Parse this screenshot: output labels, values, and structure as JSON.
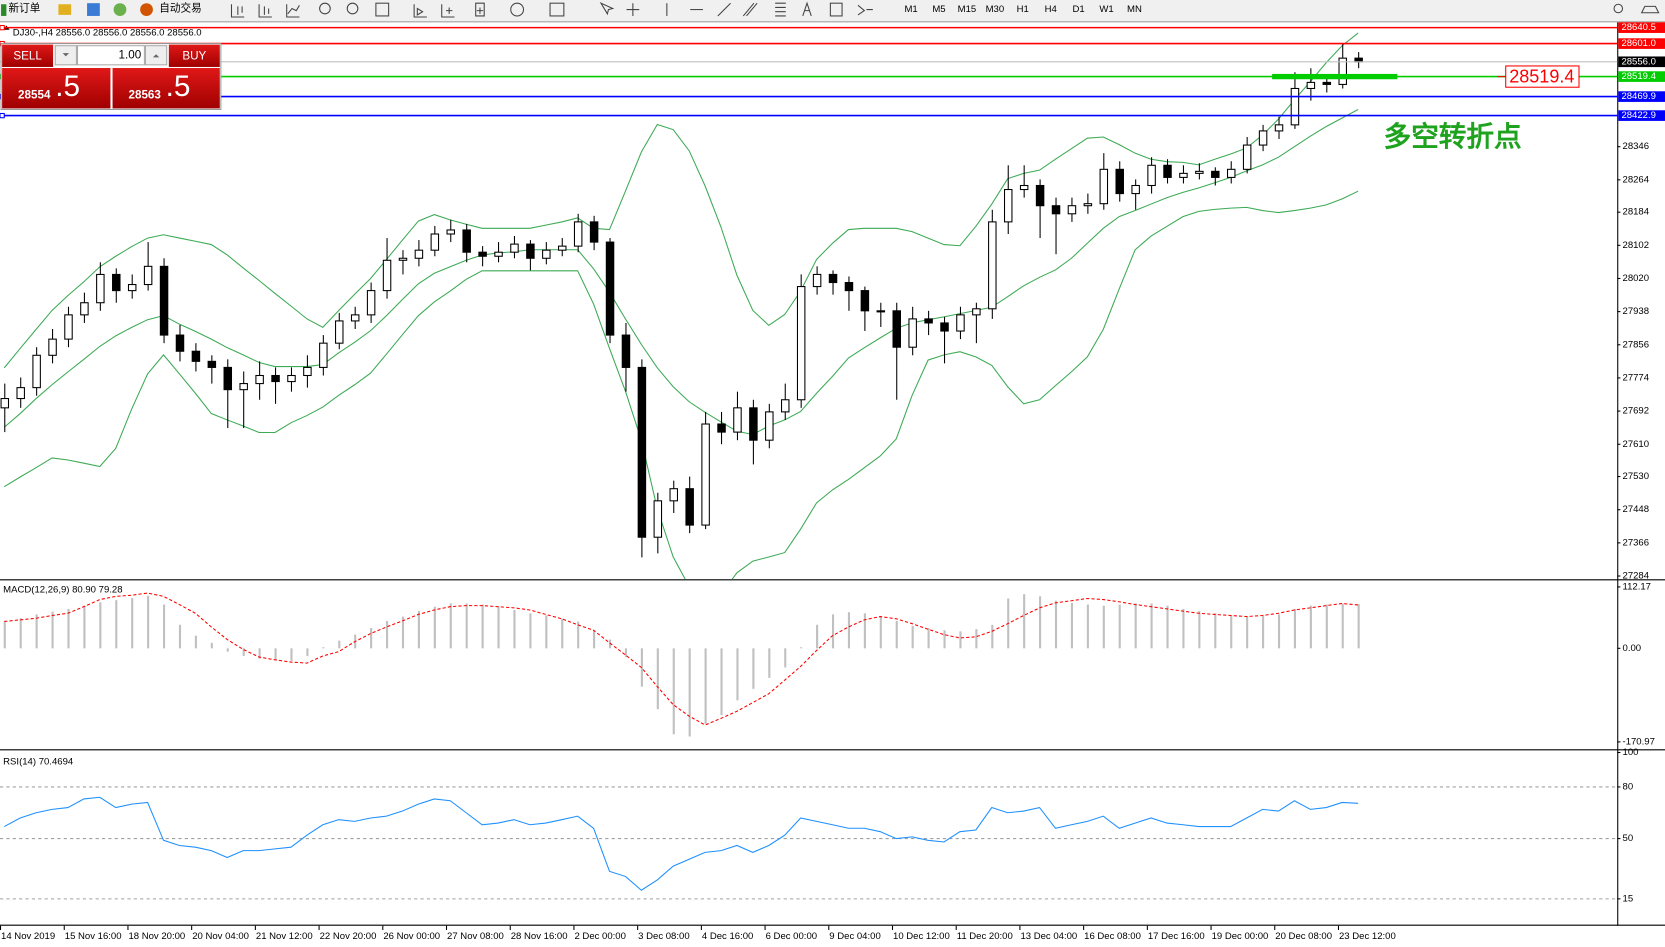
{
  "toolbar": {
    "new_order": "新订单",
    "auto_trading": "自动交易",
    "timeframes": [
      "M1",
      "M5",
      "M15",
      "M30",
      "H1",
      "H4",
      "D1",
      "W1",
      "MN"
    ]
  },
  "trade_panel": {
    "sell": "SELL",
    "buy": "BUY",
    "volume": "1.00",
    "sell_price": "28554",
    "sell_fraction": ".5",
    "buy_price": "28563",
    "buy_fraction": ".5"
  },
  "chart_data": [
    {
      "type": "candlestick",
      "title": "DJ30-,H4  28556.0 28556.0 28556.0 28556.0",
      "annotation": "多空转折点",
      "annotation_color": "#1fa31f",
      "x_labels": [
        "14 Nov 2019",
        "15 Nov 16:00",
        "18 Nov 20:00",
        "20 Nov 04:00",
        "21 Nov 12:00",
        "22 Nov 20:00",
        "26 Nov 00:00",
        "27 Nov 08:00",
        "28 Nov 16:00",
        "2 Dec 00:00",
        "3 Dec 08:00",
        "4 Dec 16:00",
        "6 Dec 00:00",
        "9 Dec 04:00",
        "10 Dec 12:00",
        "11 Dec 20:00",
        "13 Dec 04:00",
        "16 Dec 08:00",
        "17 Dec 16:00",
        "19 Dec 00:00",
        "20 Dec 08:00",
        "23 Dec 12:00"
      ],
      "ylim": [
        27276,
        28651
      ],
      "yticks": [
        27284,
        27366,
        27448,
        27530,
        27610,
        27692,
        27774,
        27856,
        27938,
        28020,
        28102,
        28184,
        28264,
        28346
      ],
      "up_color": "#ffffff",
      "down_color": "#000000",
      "outline_color": "#000000",
      "band_color": "#3daa55",
      "bid": {
        "value": 28556,
        "label": "28556.0"
      },
      "hlines": [
        {
          "value": 28640.5,
          "color": "#ff0000"
        },
        {
          "value": 28601,
          "label": "28601.0",
          "color": "#ff0000"
        },
        {
          "value": 28519.4,
          "color": "#00cc00",
          "callout": true
        },
        {
          "value": 28469.9,
          "color": "#0000ff"
        },
        {
          "value": 28422.9,
          "color": "#0000ff"
        }
      ],
      "candles": [
        [
          27700,
          27760,
          27640,
          27723
        ],
        [
          27723,
          27775,
          27700,
          27750
        ],
        [
          27750,
          27850,
          27730,
          27830
        ],
        [
          27830,
          27895,
          27810,
          27870
        ],
        [
          27870,
          27950,
          27850,
          27930
        ],
        [
          27930,
          27985,
          27910,
          27960
        ],
        [
          27960,
          28060,
          27940,
          28030
        ],
        [
          28030,
          28045,
          27960,
          27990
        ],
        [
          27990,
          28030,
          27970,
          28005
        ],
        [
          28005,
          28110,
          27990,
          28050
        ],
        [
          28050,
          28070,
          27860,
          27880
        ],
        [
          27880,
          27905,
          27815,
          27840
        ],
        [
          27840,
          27860,
          27790,
          27815
        ],
        [
          27815,
          27830,
          27760,
          27800
        ],
        [
          27800,
          27820,
          27650,
          27745
        ],
        [
          27745,
          27790,
          27650,
          27760
        ],
        [
          27760,
          27815,
          27720,
          27780
        ],
        [
          27780,
          27800,
          27710,
          27765
        ],
        [
          27765,
          27800,
          27740,
          27780
        ],
        [
          27780,
          27830,
          27750,
          27800
        ],
        [
          27800,
          27880,
          27780,
          27860
        ],
        [
          27860,
          27935,
          27845,
          27915
        ],
        [
          27915,
          27950,
          27895,
          27930
        ],
        [
          27930,
          28010,
          27910,
          27990
        ],
        [
          27990,
          28120,
          27970,
          28065
        ],
        [
          28065,
          28090,
          28030,
          28070
        ],
        [
          28070,
          28115,
          28050,
          28090
        ],
        [
          28090,
          28150,
          28075,
          28130
        ],
        [
          28130,
          28165,
          28110,
          28140
        ],
        [
          28140,
          28155,
          28060,
          28085
        ],
        [
          28085,
          28100,
          28050,
          28075
        ],
        [
          28075,
          28110,
          28060,
          28085
        ],
        [
          28085,
          28125,
          28070,
          28105
        ],
        [
          28105,
          28115,
          28040,
          28070
        ],
        [
          28070,
          28110,
          28055,
          28090
        ],
        [
          28090,
          28120,
          28075,
          28100
        ],
        [
          28100,
          28180,
          28085,
          28160
        ],
        [
          28160,
          28175,
          28090,
          28110
        ],
        [
          28110,
          28120,
          27860,
          27880
        ],
        [
          27880,
          27910,
          27740,
          27800
        ],
        [
          27800,
          27820,
          27330,
          27380
        ],
        [
          27380,
          27490,
          27340,
          27470
        ],
        [
          27470,
          27520,
          27440,
          27500
        ],
        [
          27500,
          27530,
          27390,
          27410
        ],
        [
          27410,
          27690,
          27400,
          27660
        ],
        [
          27660,
          27690,
          27610,
          27640
        ],
        [
          27640,
          27740,
          27620,
          27700
        ],
        [
          27700,
          27720,
          27560,
          27620
        ],
        [
          27620,
          27710,
          27600,
          27690
        ],
        [
          27690,
          27760,
          27670,
          27720
        ],
        [
          27720,
          28030,
          27700,
          28000
        ],
        [
          28000,
          28050,
          27980,
          28030
        ],
        [
          28030,
          28040,
          27980,
          28010
        ],
        [
          28010,
          28025,
          27940,
          27990
        ],
        [
          27990,
          28000,
          27890,
          27940
        ],
        [
          27940,
          27960,
          27900,
          27940
        ],
        [
          27940,
          27960,
          27720,
          27850
        ],
        [
          27850,
          27950,
          27830,
          27920
        ],
        [
          27920,
          27940,
          27880,
          27910
        ],
        [
          27910,
          27925,
          27810,
          27890
        ],
        [
          27890,
          27950,
          27870,
          27930
        ],
        [
          27930,
          27960,
          27860,
          27945
        ],
        [
          27945,
          28190,
          27920,
          28160
        ],
        [
          28160,
          28300,
          28130,
          28240
        ],
        [
          28240,
          28300,
          28220,
          28250
        ],
        [
          28250,
          28265,
          28120,
          28200
        ],
        [
          28200,
          28220,
          28080,
          28180
        ],
        [
          28180,
          28220,
          28160,
          28200
        ],
        [
          28200,
          28230,
          28180,
          28205
        ],
        [
          28205,
          28330,
          28190,
          28290
        ],
        [
          28290,
          28310,
          28210,
          28230
        ],
        [
          28230,
          28265,
          28190,
          28250
        ],
        [
          28250,
          28320,
          28230,
          28300
        ],
        [
          28300,
          28315,
          28255,
          28270
        ],
        [
          28270,
          28300,
          28255,
          28280
        ],
        [
          28280,
          28305,
          28265,
          28285
        ],
        [
          28285,
          28295,
          28250,
          28270
        ],
        [
          28270,
          28310,
          28255,
          28290
        ],
        [
          28290,
          28370,
          28280,
          28350
        ],
        [
          28350,
          28400,
          28335,
          28385
        ],
        [
          28385,
          28420,
          28365,
          28400
        ],
        [
          28400,
          28530,
          28390,
          28490
        ],
        [
          28490,
          28540,
          28460,
          28505
        ],
        [
          28505,
          28520,
          28480,
          28500
        ],
        [
          28500,
          28600,
          28490,
          28565
        ],
        [
          28565,
          28580,
          28540,
          28556
        ]
      ],
      "upper": [
        27799,
        27847,
        27894,
        27941,
        27978,
        28012,
        28049,
        28075,
        28099,
        28120,
        28128,
        28120,
        28112,
        28104,
        28078,
        28046,
        28015,
        27983,
        27952,
        27920,
        27899,
        27941,
        27981,
        28020,
        28067,
        28115,
        28162,
        28178,
        28165,
        28154,
        28144,
        28144,
        28144,
        28144,
        28152,
        28160,
        28170,
        28144,
        28141,
        28236,
        28333,
        28401,
        28388,
        28336,
        28249,
        28147,
        28028,
        27941,
        27904,
        27931,
        27989,
        28067,
        28107,
        28141,
        28144,
        28144,
        28144,
        28136,
        28120,
        28104,
        28101,
        28149,
        28204,
        28267,
        28280,
        28288,
        28315,
        28341,
        28367,
        28370,
        28351,
        28330,
        28315,
        28309,
        28307,
        28301,
        28315,
        28328,
        28343,
        28375,
        28414,
        28462,
        28507,
        28554,
        28596,
        28627
      ],
      "middle": [
        27652,
        27686,
        27723,
        27757,
        27789,
        27820,
        27852,
        27878,
        27899,
        27918,
        27928,
        27907,
        27889,
        27870,
        27849,
        27831,
        27812,
        27802,
        27802,
        27802,
        27807,
        27836,
        27862,
        27891,
        27928,
        27968,
        28007,
        28033,
        28049,
        28065,
        28078,
        28083,
        28086,
        28091,
        28091,
        28091,
        28091,
        28044,
        27986,
        27920,
        27857,
        27799,
        27752,
        27715,
        27689,
        27665,
        27642,
        27634,
        27655,
        27670,
        27691,
        27736,
        27778,
        27823,
        27849,
        27873,
        27897,
        27910,
        27918,
        27925,
        27933,
        27941,
        27949,
        27975,
        28002,
        28023,
        28041,
        28070,
        28107,
        28144,
        28173,
        28188,
        28204,
        28220,
        28233,
        28244,
        28257,
        28270,
        28286,
        28301,
        28320,
        28346,
        28372,
        28396,
        28417,
        28438
      ],
      "lower": [
        27505,
        27529,
        27552,
        27576,
        27571,
        27563,
        27555,
        27600,
        27697,
        27784,
        27831,
        27784,
        27736,
        27686,
        27670,
        27655,
        27639,
        27639,
        27663,
        27681,
        27702,
        27731,
        27757,
        27786,
        27833,
        27881,
        27928,
        27962,
        27989,
        28018,
        28039,
        28039,
        28039,
        28039,
        28039,
        28039,
        28039,
        27957,
        27847,
        27741,
        27620,
        27450,
        27331,
        27258,
        27226,
        27239,
        27292,
        27321,
        27331,
        27342,
        27400,
        27465,
        27497,
        27523,
        27552,
        27581,
        27623,
        27731,
        27818,
        27831,
        27839,
        27826,
        27805,
        27752,
        27710,
        27720,
        27755,
        27789,
        27826,
        27894,
        27994,
        28091,
        28125,
        28149,
        28173,
        28186,
        28191,
        28194,
        28196,
        28188,
        28183,
        28188,
        28194,
        28202,
        28217,
        28236
      ]
    },
    {
      "type": "macd",
      "title": "MACD(12,26,9) 80.90 79.28",
      "ylim": [
        -184.5,
        122.3
      ],
      "yticks": [
        112.17,
        {
          "value": 0,
          "label": "0.00"
        },
        -170.97
      ],
      "histogram_color": "#c0c0c0",
      "signal_color": "#ff0000",
      "histogram": [
        49,
        55,
        62,
        67,
        72,
        78,
        84,
        88,
        92,
        96,
        80,
        43,
        23,
        10,
        -6,
        -14,
        -19,
        -21,
        -23,
        -14,
        2,
        14,
        25,
        37,
        50,
        58,
        68,
        76,
        82,
        82,
        80,
        76,
        70,
        64,
        60,
        54,
        49,
        33,
        16,
        -16,
        -70,
        -111,
        -157,
        -161,
        -138,
        -122,
        -95,
        -74,
        -54,
        -35,
        2,
        43,
        62,
        66,
        64,
        58,
        50,
        41,
        37,
        33,
        31,
        35,
        43,
        91,
        99,
        95,
        87,
        83,
        80,
        78,
        80,
        82,
        82,
        78,
        72,
        68,
        64,
        60,
        58,
        60,
        62,
        72,
        78,
        80,
        82,
        80.9
      ],
      "signal": [
        49,
        52,
        55,
        60,
        64,
        76,
        89,
        95,
        97,
        101,
        95,
        80,
        64,
        39,
        16,
        -2,
        -16,
        -21,
        -25,
        -27,
        -14,
        -6,
        12,
        27,
        39,
        50,
        62,
        70,
        76,
        78,
        78,
        76,
        74,
        70,
        62,
        54,
        43,
        33,
        10,
        -12,
        -35,
        -70,
        -103,
        -124,
        -140,
        -128,
        -115,
        -99,
        -83,
        -58,
        -33,
        -4,
        23,
        39,
        52,
        58,
        54,
        45,
        35,
        25,
        19,
        21,
        31,
        45,
        60,
        74,
        83,
        87,
        91,
        89,
        85,
        80,
        76,
        72,
        68,
        64,
        62,
        60,
        58,
        60,
        64,
        70,
        74,
        78,
        82,
        79.28
      ]
    },
    {
      "type": "line",
      "title": "RSI(14) 70.4694",
      "ylim": [
        0,
        100
      ],
      "yticks": [
        100,
        80,
        50,
        15
      ],
      "levels": [
        80,
        50,
        15
      ],
      "color": "#1e90ff",
      "values": [
        57,
        62,
        65,
        67,
        68,
        73,
        74,
        68,
        70,
        71,
        49,
        46,
        45,
        43,
        39,
        43,
        43,
        44,
        45,
        52,
        58,
        61,
        60,
        62,
        63,
        66,
        70,
        73,
        72,
        65,
        58,
        59,
        61,
        58,
        59,
        61,
        63,
        56,
        31,
        28,
        20,
        26,
        34,
        38,
        42,
        43,
        46,
        42,
        46,
        52,
        62,
        60,
        58,
        56,
        56,
        54,
        50,
        51,
        49,
        48,
        54,
        55,
        68,
        65,
        66,
        68,
        56,
        58,
        60,
        63,
        56,
        59,
        62,
        59,
        58,
        57,
        57,
        57,
        62,
        67,
        66,
        72,
        67,
        68,
        71,
        70.4694
      ]
    }
  ]
}
